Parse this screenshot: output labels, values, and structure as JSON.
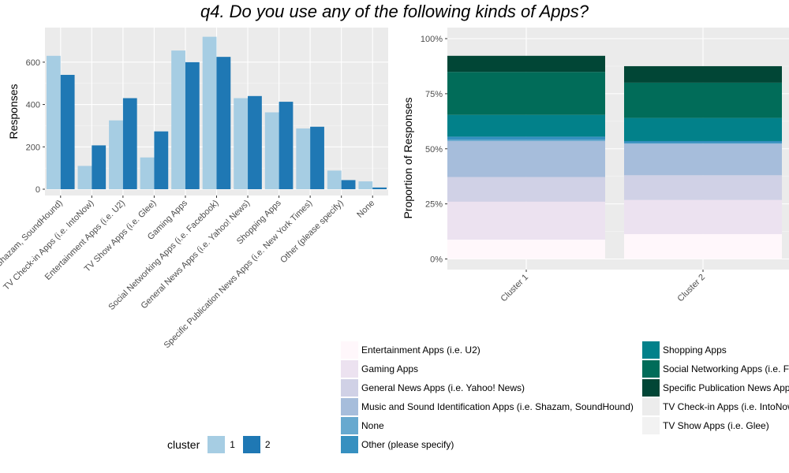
{
  "title": "q4. Do you use any of the following kinds of Apps?",
  "chart_data": [
    {
      "type": "bar",
      "ylabel": "Responses",
      "xlabel": "",
      "ylim": [
        0,
        700
      ],
      "yticks": [
        0,
        200,
        400,
        600
      ],
      "grid": true,
      "categories": [
        "Music and Sound Identification Apps (i.e. Shazam, SoundHound)",
        "TV Check-in Apps (i.e. IntoNow)",
        "Entertainment Apps (i.e. U2)",
        "TV Show Apps (i.e. Glee)",
        "Gaming Apps",
        "Social Networking Apps (i.e. Facebook)",
        "General News Apps (i.e. Yahoo! News)",
        "Shopping Apps",
        "Specific Publication News Apps (i.e. New York Times)",
        "Other (please specify)",
        "None"
      ],
      "tick_labels": [
        "Shazam, SoundHound)",
        "TV Check-in Apps (i.e. IntoNow)",
        "Entertainment Apps (i.e. U2)",
        "TV Show Apps (i.e. Glee)",
        "Gaming Apps",
        "Social Networking Apps (i.e. Facebook)",
        "General News Apps (i.e. Yahoo! News)",
        "Shopping Apps",
        "Specific Publication News Apps (i.e. New York Times)",
        "Other (please specify)",
        "None"
      ],
      "series": [
        {
          "name": "1",
          "color": "#a6cde3",
          "values": [
            630,
            110,
            325,
            150,
            655,
            720,
            430,
            363,
            287,
            88,
            37
          ]
        },
        {
          "name": "2",
          "color": "#1f78b4",
          "values": [
            540,
            207,
            430,
            273,
            600,
            625,
            440,
            413,
            295,
            43,
            8
          ]
        }
      ],
      "legend": {
        "title": "cluster",
        "position": "bottom-left",
        "labels": [
          "1",
          "2"
        ]
      }
    },
    {
      "type": "bar",
      "stacked": true,
      "ylabel": "Proportion of Responses",
      "xlabel": "",
      "ylim": [
        0,
        1
      ],
      "ytick_labels": [
        "0%",
        "25%",
        "50%",
        "75%",
        "100%"
      ],
      "grid": true,
      "categories": [
        "Cluster 1",
        "Cluster 2"
      ],
      "series": [
        {
          "name": "Entertainment Apps (i.e. U2)",
          "color": "#fff7fb",
          "values": [
            0.088,
            0.113
          ]
        },
        {
          "name": "Gaming Apps",
          "color": "#ece2f0",
          "values": [
            0.172,
            0.155
          ]
        },
        {
          "name": "General News Apps (i.e. Yahoo! News)",
          "color": "#d0d1e6",
          "values": [
            0.112,
            0.112
          ]
        },
        {
          "name": "Music and Sound Identification Apps (i.e. Shazam, SoundHound)",
          "color": "#a6bddb",
          "values": [
            0.163,
            0.143
          ]
        },
        {
          "name": "None",
          "color": "#67a9cf",
          "values": [
            0.006,
            0.002
          ]
        },
        {
          "name": "Other (please specify)",
          "color": "#3690c0",
          "values": [
            0.014,
            0.01
          ]
        },
        {
          "name": "Shopping Apps",
          "color": "#02818a",
          "values": [
            0.099,
            0.105
          ]
        },
        {
          "name": "Social Networking Apps (i.e. Facebook)",
          "color": "#016c59",
          "values": [
            0.195,
            0.16
          ]
        },
        {
          "name": "Specific Publication News Apps (i.e. New York Times)",
          "color": "#014636",
          "values": [
            0.073,
            0.075
          ]
        },
        {
          "name": "TV Check-in Apps (i.e. IntoNow)",
          "color": "#ececec",
          "values": [
            0.0,
            0.0
          ]
        },
        {
          "name": "TV Show Apps (i.e. Glee)",
          "color": "#f2f2f2",
          "values": [
            0.0,
            0.0
          ]
        }
      ],
      "legend": {
        "position": "bottom-right"
      }
    }
  ],
  "legend_left": {
    "title": "cluster"
  }
}
